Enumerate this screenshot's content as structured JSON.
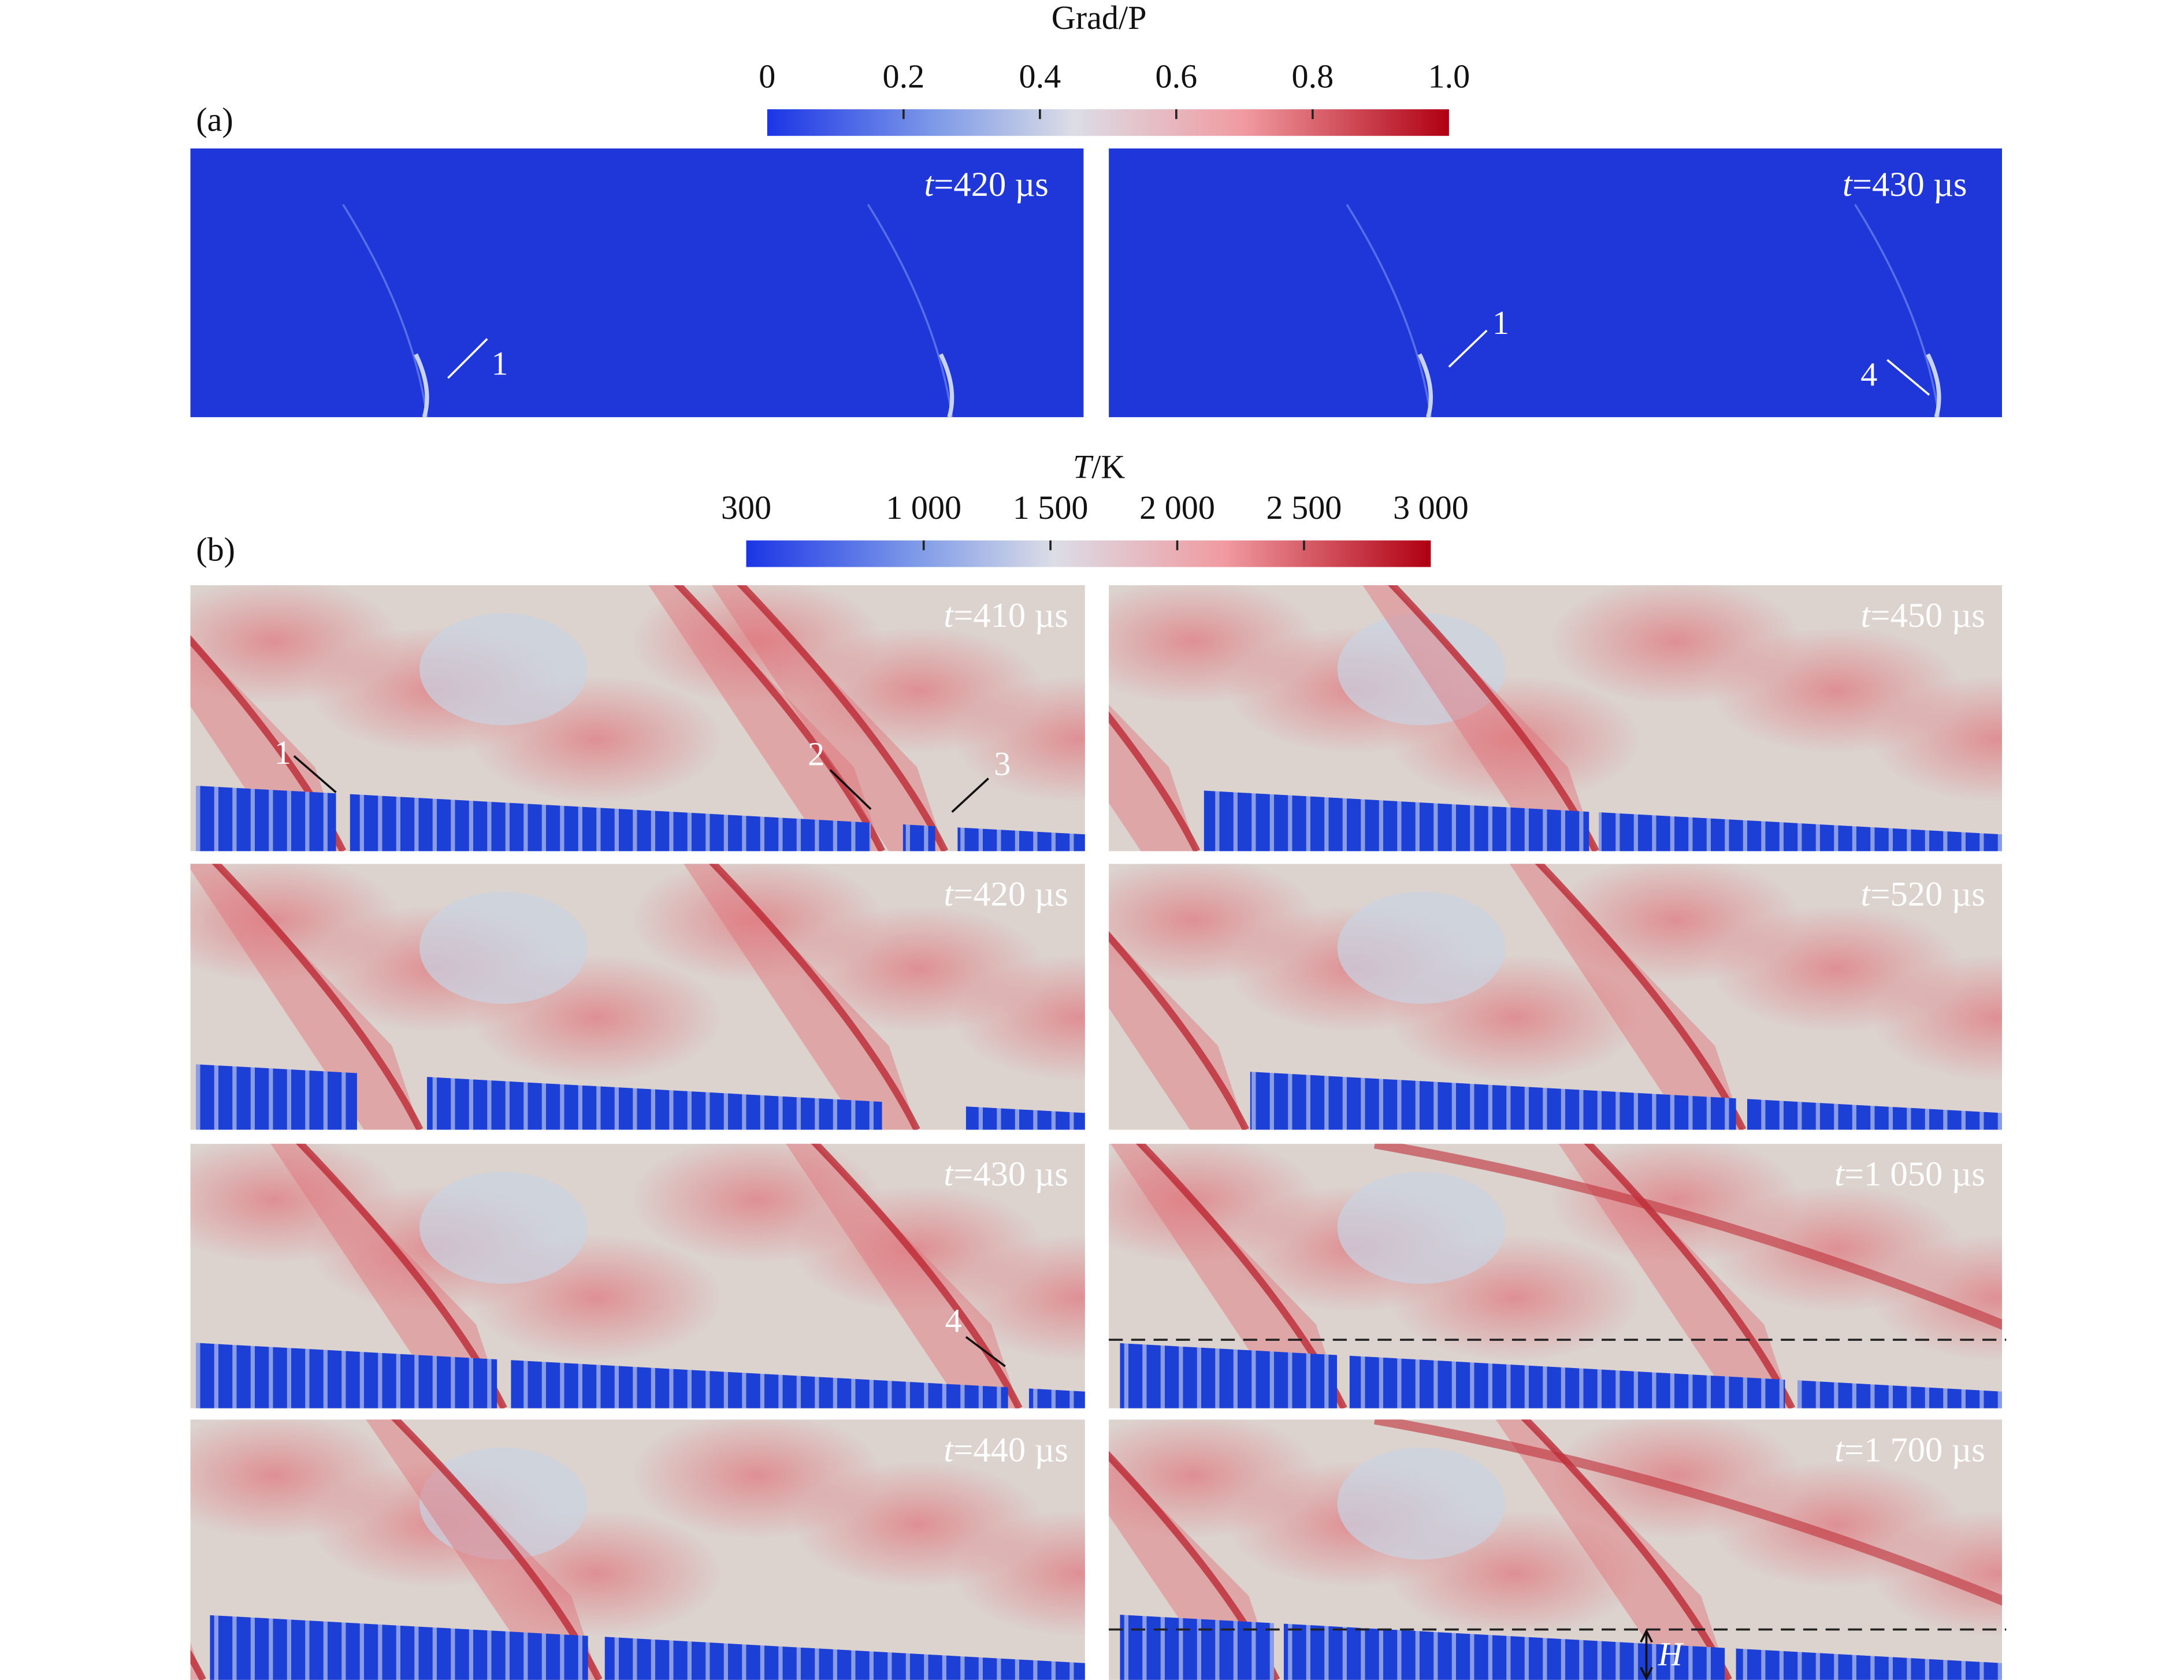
{
  "time_symbol": "t",
  "panel_a": {
    "label": "(a)",
    "colorbar": {
      "title": "Grad/P",
      "range": [
        0,
        1
      ],
      "ticks": [
        0,
        0.2,
        0.4,
        0.6,
        0.8,
        {
          "value": 1,
          "label": "1.0"
        }
      ]
    },
    "frames": [
      {
        "time": "=420 µs",
        "annotations": [
          {
            "label": "1"
          }
        ]
      },
      {
        "time": "=430 µs",
        "annotations": [
          {
            "label": "1"
          },
          {
            "label": "4"
          }
        ]
      }
    ]
  },
  "panel_b": {
    "label": "(b)",
    "colorbar": {
      "title_symbol": "T",
      "title_unit": "/K",
      "range": [
        300,
        3000
      ],
      "ticks": [
        300,
        {
          "value": 1000,
          "label": "1 000"
        },
        {
          "value": 1500,
          "label": "1 500"
        },
        {
          "value": 2000,
          "label": "2 000"
        },
        {
          "value": 2500,
          "label": "2 500"
        },
        {
          "value": 3000,
          "label": "3 000"
        }
      ]
    },
    "frames": [
      {
        "time": "=410 µs",
        "annotations": [
          {
            "label": "1"
          },
          {
            "label": "2"
          },
          {
            "label": "3"
          }
        ]
      },
      {
        "time": "=420 µs",
        "annotations": []
      },
      {
        "time": "=430 µs",
        "annotations": [
          {
            "label": "4"
          }
        ]
      },
      {
        "time": "=440 µs",
        "annotations": []
      },
      {
        "time": "=450 µs",
        "annotations": []
      },
      {
        "time": "=520 µs",
        "annotations": []
      },
      {
        "time": "=1 050 µs",
        "annotations": []
      },
      {
        "time": "=1 700 µs",
        "annotations": [
          {
            "label": "H"
          }
        ]
      }
    ]
  }
}
